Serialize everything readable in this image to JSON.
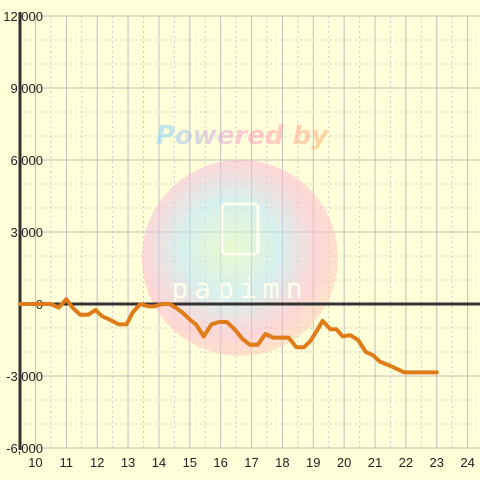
{
  "watermark": {
    "line1": "Powered by",
    "brand": "papimn"
  },
  "chart_data": {
    "type": "line",
    "xlim": [
      9.5,
      24.4
    ],
    "ylim": [
      -6000,
      12000
    ],
    "xticks": [
      10,
      11,
      12,
      13,
      14,
      15,
      16,
      17,
      18,
      19,
      20,
      21,
      22,
      23,
      24
    ],
    "yticks": [
      -6000,
      -3000,
      0,
      3000,
      6000,
      9000,
      12000
    ],
    "ytick_labels": [
      "-6,000",
      "-3,000",
      "0",
      "3,000",
      "6,000",
      "9,000",
      "12,000"
    ],
    "grid": true,
    "colors": {
      "background": "#ffffd9",
      "line": "#e07b1a",
      "grid_major": "#bfbfbf",
      "grid_minor": "#cccccc",
      "axis": "#333333"
    },
    "series": [
      {
        "x": [
          9.5,
          10.5,
          10.75,
          11.0,
          11.2,
          11.45,
          11.7,
          11.95,
          12.15,
          12.4,
          12.7,
          12.95,
          13.15,
          13.4,
          13.65,
          13.85,
          14.1,
          14.35,
          14.6,
          14.8,
          15.0,
          15.2,
          15.45,
          15.7,
          15.95,
          16.2,
          16.45,
          16.7,
          16.95,
          17.2,
          17.45,
          17.7,
          17.95,
          18.2,
          18.45,
          18.7,
          18.9,
          19.1,
          19.3,
          19.55,
          19.75,
          19.95,
          20.2,
          20.45,
          20.7,
          20.95,
          21.15,
          21.45,
          21.7,
          21.95,
          22.2,
          22.45,
          22.7,
          23.0
        ],
        "y": [
          0,
          0,
          -150,
          200,
          -150,
          -450,
          -450,
          -250,
          -500,
          -650,
          -850,
          -850,
          -350,
          0,
          -100,
          -100,
          0,
          0,
          -200,
          -400,
          -650,
          -850,
          -1350,
          -850,
          -750,
          -750,
          -1050,
          -1450,
          -1700,
          -1700,
          -1250,
          -1400,
          -1400,
          -1400,
          -1800,
          -1800,
          -1550,
          -1150,
          -700,
          -1050,
          -1050,
          -1350,
          -1300,
          -1500,
          -2000,
          -2150,
          -2400,
          -2550,
          -2700,
          -2850,
          -2850,
          -2850,
          -2850,
          -2850
        ]
      }
    ]
  }
}
